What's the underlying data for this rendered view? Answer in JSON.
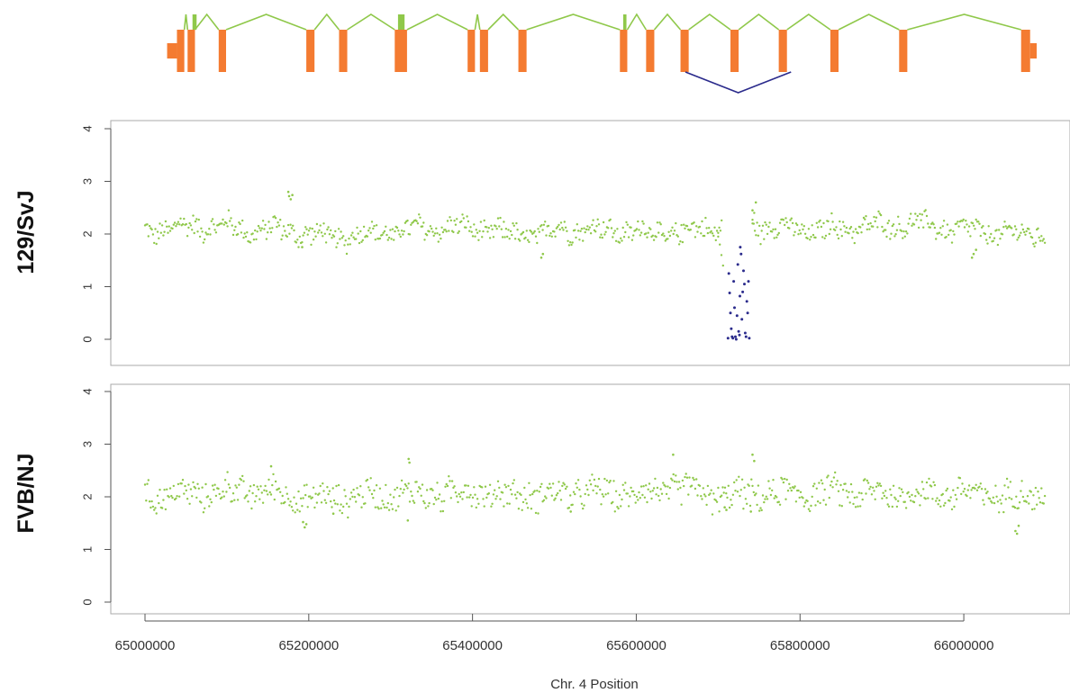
{
  "chart_data": [
    {
      "type": "scatter",
      "title": "",
      "panel_label": "129/SvJ",
      "ylabel": "",
      "xlim": [
        65000000,
        66100000
      ],
      "ylim": [
        0,
        4
      ],
      "yticks": [
        "0",
        "1",
        "2",
        "3",
        "4"
      ],
      "colors": {
        "normal": "#8fc84a",
        "deleted": "#2b2b8c"
      },
      "trend": [
        [
          65000000,
          2.05
        ],
        [
          65030000,
          2.1
        ],
        [
          65060000,
          2.15
        ],
        [
          65100000,
          2.15
        ],
        [
          65130000,
          2.05
        ],
        [
          65160000,
          2.1
        ],
        [
          65200000,
          2.0
        ],
        [
          65230000,
          1.92
        ],
        [
          65260000,
          1.98
        ],
        [
          65300000,
          2.05
        ],
        [
          65340000,
          2.1
        ],
        [
          65380000,
          2.12
        ],
        [
          65420000,
          2.08
        ],
        [
          65450000,
          1.98
        ],
        [
          65480000,
          2.0
        ],
        [
          65510000,
          2.1
        ],
        [
          65550000,
          2.08
        ],
        [
          65600000,
          2.05
        ],
        [
          65640000,
          2.0
        ],
        [
          65680000,
          2.1
        ],
        [
          65700000,
          2.12
        ],
        [
          65740000,
          2.15
        ],
        [
          65780000,
          2.12
        ],
        [
          65820000,
          2.05
        ],
        [
          65860000,
          2.12
        ],
        [
          65900000,
          2.15
        ],
        [
          65940000,
          2.2
        ],
        [
          65980000,
          2.1
        ],
        [
          66020000,
          2.05
        ],
        [
          66060000,
          2.0
        ],
        [
          66100000,
          2.0
        ]
      ],
      "scatter_amplitude": 0.22,
      "outliers": [
        [
          65175000,
          2.8
        ],
        [
          65176000,
          2.72
        ],
        [
          65178000,
          2.66
        ],
        [
          65180000,
          2.74
        ],
        [
          65484000,
          1.55
        ],
        [
          65486000,
          1.62
        ],
        [
          65746000,
          2.6
        ],
        [
          65742000,
          2.45
        ],
        [
          66010000,
          1.55
        ],
        [
          66012000,
          1.62
        ],
        [
          66015000,
          1.7
        ],
        [
          65192000,
          1.75
        ]
      ],
      "deletion_points": [
        [
          65713000,
          1.25
        ],
        [
          65714000,
          0.88
        ],
        [
          65715000,
          0.5
        ],
        [
          65716000,
          0.2
        ],
        [
          65717000,
          0.05
        ],
        [
          65718000,
          0.02
        ],
        [
          65719000,
          1.1
        ],
        [
          65720000,
          0.6
        ],
        [
          65721000,
          0.05
        ],
        [
          65722000,
          0.0
        ],
        [
          65723000,
          0.45
        ],
        [
          65724000,
          1.42
        ],
        [
          65725000,
          0.15
        ],
        [
          65726000,
          0.08
        ],
        [
          65727000,
          1.75
        ],
        [
          65728000,
          1.62
        ],
        [
          65729000,
          0.38
        ],
        [
          65730000,
          0.9
        ],
        [
          65731000,
          1.3
        ],
        [
          65732000,
          1.05
        ],
        [
          65733000,
          0.12
        ],
        [
          65734000,
          0.05
        ],
        [
          65735000,
          0.72
        ],
        [
          65736000,
          0.5
        ],
        [
          65737000,
          1.1
        ],
        [
          65738000,
          0.02
        ],
        [
          65712000,
          0.02
        ],
        [
          65726500,
          0.82
        ]
      ]
    },
    {
      "type": "scatter",
      "title": "",
      "panel_label": "FVB/NJ",
      "xlabel": "Chr. 4 Position",
      "xlim": [
        65000000,
        66100000
      ],
      "ylim": [
        0,
        4
      ],
      "yticks": [
        "0",
        "1",
        "2",
        "3",
        "4"
      ],
      "xticks": [
        "65000000",
        "65200000",
        "65400000",
        "65600000",
        "65800000",
        "66000000"
      ],
      "colors": {
        "normal": "#8fc84a"
      },
      "trend": [
        [
          65000000,
          2.0
        ],
        [
          65050000,
          2.05
        ],
        [
          65100000,
          2.1
        ],
        [
          65150000,
          2.1
        ],
        [
          65200000,
          1.95
        ],
        [
          65250000,
          2.0
        ],
        [
          65300000,
          2.05
        ],
        [
          65350000,
          2.05
        ],
        [
          65400000,
          2.1
        ],
        [
          65450000,
          2.02
        ],
        [
          65500000,
          2.05
        ],
        [
          65550000,
          2.08
        ],
        [
          65600000,
          2.05
        ],
        [
          65650000,
          2.18
        ],
        [
          65700000,
          2.0
        ],
        [
          65750000,
          2.05
        ],
        [
          65800000,
          2.05
        ],
        [
          65850000,
          2.1
        ],
        [
          65900000,
          2.05
        ],
        [
          65950000,
          2.05
        ],
        [
          66000000,
          2.08
        ],
        [
          66050000,
          2.0
        ],
        [
          66100000,
          2.05
        ]
      ],
      "scatter_amplitude": 0.3,
      "outliers": [
        [
          65193000,
          1.52
        ],
        [
          65195000,
          1.42
        ],
        [
          65197000,
          1.48
        ],
        [
          65322000,
          2.72
        ],
        [
          65323000,
          2.65
        ],
        [
          65321000,
          1.55
        ],
        [
          65645000,
          2.8
        ],
        [
          65708000,
          1.8
        ],
        [
          65710000,
          1.75
        ],
        [
          65742000,
          2.8
        ],
        [
          65744000,
          2.68
        ],
        [
          65740000,
          1.72
        ],
        [
          66063000,
          1.35
        ],
        [
          66065000,
          1.3
        ],
        [
          66067000,
          1.45
        ],
        [
          65154000,
          2.58
        ],
        [
          65230000,
          1.68
        ],
        [
          65520000,
          1.72
        ]
      ]
    }
  ],
  "gene_model": {
    "exon_color": "#f47b31",
    "intron_color": "#8fc84a",
    "deletion_color": "#2b2b8c",
    "exons": [
      [
        65039000,
        65048000
      ],
      [
        65052000,
        65061000
      ],
      [
        65090000,
        65099000
      ],
      [
        65197000,
        65207000
      ],
      [
        65237000,
        65247000
      ],
      [
        65305000,
        65320000
      ],
      [
        65394000,
        65403000
      ],
      [
        65409000,
        65419000
      ],
      [
        65456000,
        65466000
      ],
      [
        65580000,
        65589000
      ],
      [
        65612000,
        65622000
      ],
      [
        65654000,
        65664000
      ],
      [
        65715000,
        65725000
      ],
      [
        65774000,
        65784000
      ],
      [
        65837000,
        65847000
      ],
      [
        65921000,
        65931000
      ],
      [
        66070000,
        66081000
      ]
    ],
    "utr_left": [
      65027000,
      65039000
    ],
    "utr_right": [
      66081000,
      66089000
    ],
    "green_blocks": [
      [
        65058000,
        65063000
      ],
      [
        65309000,
        65317000
      ],
      [
        65584000,
        65588000
      ]
    ],
    "deletion_junction": [
      65660000,
      65789000
    ]
  }
}
